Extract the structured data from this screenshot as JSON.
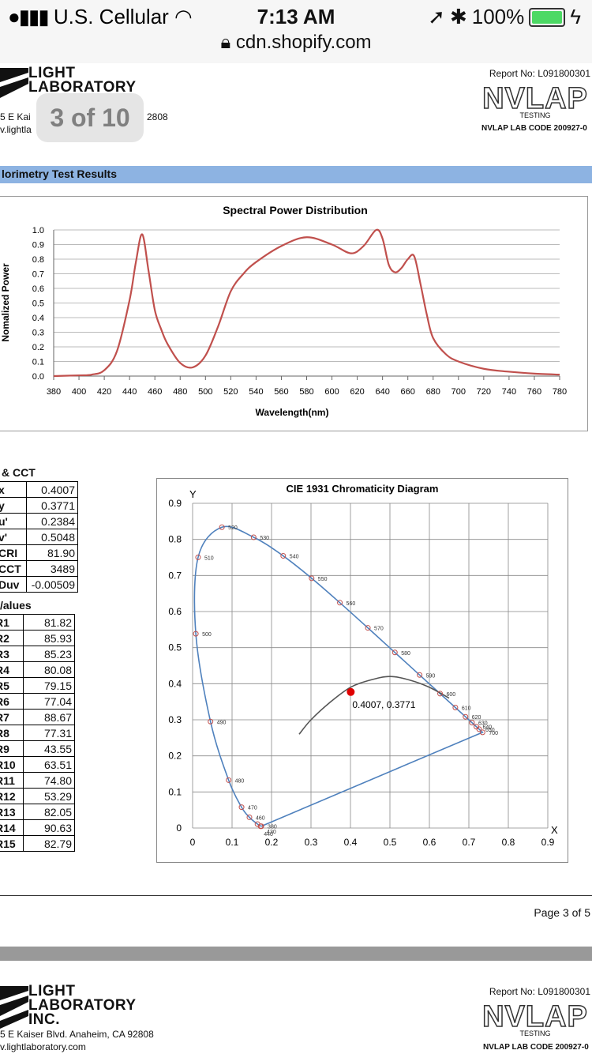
{
  "status_bar": {
    "carrier": "U.S. Cellular",
    "time": "7:13 AM",
    "url": "cdn.shopify.com",
    "battery": "100%",
    "battery_level": 1.0
  },
  "header": {
    "logo_lines": [
      "LIGHT",
      "LABORATORY"
    ],
    "address_partial": "5 E Kai",
    "address_suffix": "2808",
    "web_partial": "v.lightla",
    "report_no": "Report No: L091800301",
    "nvlap_word": "NVLAP",
    "nvlap_testing": "TESTING",
    "nvlap_code": "NVLAP LAB CODE 200927-0",
    "page_pill": "3 of 10"
  },
  "section_title": "lorimetry Test Results",
  "spd_chart": {
    "title": "Spectral Power Distribution",
    "xlabel": "Wavelength(nm)",
    "ylabel": "Nomalized Power",
    "x_ticks": [
      "380",
      "400",
      "420",
      "440",
      "460",
      "480",
      "500",
      "520",
      "540",
      "560",
      "580",
      "600",
      "620",
      "640",
      "660",
      "680",
      "700",
      "720",
      "740",
      "760",
      "780"
    ],
    "y_ticks": [
      "0.0",
      "0.1",
      "0.2",
      "0.3",
      "0.4",
      "0.5",
      "0.6",
      "0.7",
      "0.8",
      "0.9",
      "1.0"
    ]
  },
  "chart_data": [
    {
      "type": "line",
      "title": "Spectral Power Distribution",
      "xlabel": "Wavelength(nm)",
      "ylabel": "Nomalized Power",
      "xlim": [
        380,
        780
      ],
      "ylim": [
        0,
        1.0
      ],
      "grid": true,
      "series": [
        {
          "x": [
            380,
            400,
            410,
            420,
            430,
            440,
            445,
            450,
            455,
            460,
            465,
            470,
            480,
            490,
            500,
            510,
            520,
            530,
            540,
            560,
            580,
            600,
            615,
            625,
            635,
            640,
            645,
            650,
            655,
            660,
            665,
            670,
            675,
            680,
            690,
            700,
            720,
            740,
            760,
            780
          ],
          "y": [
            0.0,
            0.005,
            0.01,
            0.04,
            0.17,
            0.52,
            0.78,
            0.97,
            0.72,
            0.45,
            0.32,
            0.22,
            0.09,
            0.06,
            0.14,
            0.34,
            0.58,
            0.7,
            0.78,
            0.89,
            0.95,
            0.9,
            0.84,
            0.89,
            1.0,
            0.94,
            0.76,
            0.71,
            0.74,
            0.8,
            0.82,
            0.63,
            0.42,
            0.26,
            0.15,
            0.1,
            0.05,
            0.03,
            0.017,
            0.01
          ]
        }
      ]
    },
    {
      "type": "scatter",
      "title": "CIE 1931 Chromaticity Diagram",
      "xlabel": "X",
      "ylabel": "Y",
      "xlim": [
        0,
        0.9
      ],
      "ylim": [
        0,
        0.9
      ],
      "grid": true,
      "spectral_locus": {
        "wavelength_labels": [
          "380",
          "430",
          "440",
          "460",
          "470",
          "480",
          "490",
          "500",
          "510",
          "520",
          "530",
          "540",
          "550",
          "560",
          "570",
          "580",
          "590",
          "600",
          "610",
          "620",
          "630",
          "640",
          "650",
          "700"
        ],
        "x": [
          0.1741,
          0.1721,
          0.1644,
          0.144,
          0.1241,
          0.0913,
          0.0454,
          0.0082,
          0.0139,
          0.0743,
          0.1547,
          0.2296,
          0.3016,
          0.3731,
          0.4441,
          0.5125,
          0.5752,
          0.627,
          0.6658,
          0.6915,
          0.7079,
          0.719,
          0.726,
          0.7347
        ],
        "y": [
          0.005,
          0.0048,
          0.0109,
          0.0297,
          0.0578,
          0.1327,
          0.295,
          0.5384,
          0.7502,
          0.8338,
          0.8059,
          0.7543,
          0.6923,
          0.6245,
          0.5547,
          0.4866,
          0.4242,
          0.3725,
          0.334,
          0.3083,
          0.292,
          0.2809,
          0.274,
          0.2653
        ]
      },
      "planckian_locus": {
        "x": [
          0.27,
          0.3,
          0.35,
          0.4,
          0.45,
          0.5,
          0.55,
          0.6,
          0.65
        ],
        "y": [
          0.26,
          0.3,
          0.35,
          0.39,
          0.41,
          0.42,
          0.41,
          0.39,
          0.36
        ]
      },
      "measured_point": {
        "x": 0.4007,
        "y": 0.3771,
        "label": "0.4007, 0.3771"
      },
      "x_ticks": [
        "0",
        "0.1",
        "0.2",
        "0.3",
        "0.4",
        "0.5",
        "0.6",
        "0.7",
        "0.8",
        "0.9"
      ],
      "y_ticks": [
        "0",
        "0.1",
        "0.2",
        "0.3",
        "0.4",
        "0.5",
        "0.6",
        "0.7",
        "0.8",
        "0.9"
      ]
    }
  ],
  "cct_table": {
    "heading": "& CCT",
    "rows": [
      {
        "label": "x",
        "value": "0.4007"
      },
      {
        "label": "y",
        "value": "0.3771"
      },
      {
        "label": "u'",
        "value": "0.2384"
      },
      {
        "label": "v'",
        "value": "0.5048"
      },
      {
        "label": "CRI",
        "value": "81.90"
      },
      {
        "label": "CCT",
        "value": "3489"
      },
      {
        "label": "Duv",
        "value": "-0.00509"
      }
    ]
  },
  "r_table": {
    "heading": "/alues",
    "rows": [
      {
        "label": "R1",
        "value": "81.82"
      },
      {
        "label": "R2",
        "value": "85.93"
      },
      {
        "label": "R3",
        "value": "85.23"
      },
      {
        "label": "R4",
        "value": "80.08"
      },
      {
        "label": "R5",
        "value": "79.15"
      },
      {
        "label": "R6",
        "value": "77.04"
      },
      {
        "label": "R7",
        "value": "88.67"
      },
      {
        "label": "R8",
        "value": "77.31"
      },
      {
        "label": "R9",
        "value": "43.55"
      },
      {
        "label": "R10",
        "value": "63.51"
      },
      {
        "label": "R11",
        "value": "74.80"
      },
      {
        "label": "R12",
        "value": "53.29"
      },
      {
        "label": "R13",
        "value": "82.05"
      },
      {
        "label": "R14",
        "value": "90.63"
      },
      {
        "label": "R15",
        "value": "82.79"
      }
    ]
  },
  "footer": {
    "page": "Page 3 of 5",
    "logo_lines": [
      "LIGHT",
      "LABORATORY",
      "INC."
    ],
    "address": "5 E Kaiser Blvd. Anaheim, CA 92808",
    "web": "v.lightlaboratory.com",
    "report_no": "Report No: L091800301",
    "nvlap_word": "NVLAP",
    "nvlap_testing": "TESTING",
    "nvlap_code": "NVLAP LAB CODE 200927-0"
  },
  "colors": {
    "spd_line": "#c0504d",
    "locus_line": "#4f81bd",
    "planck_line": "#555555",
    "point": "#e00000",
    "header_bar": "#8db3e2"
  }
}
